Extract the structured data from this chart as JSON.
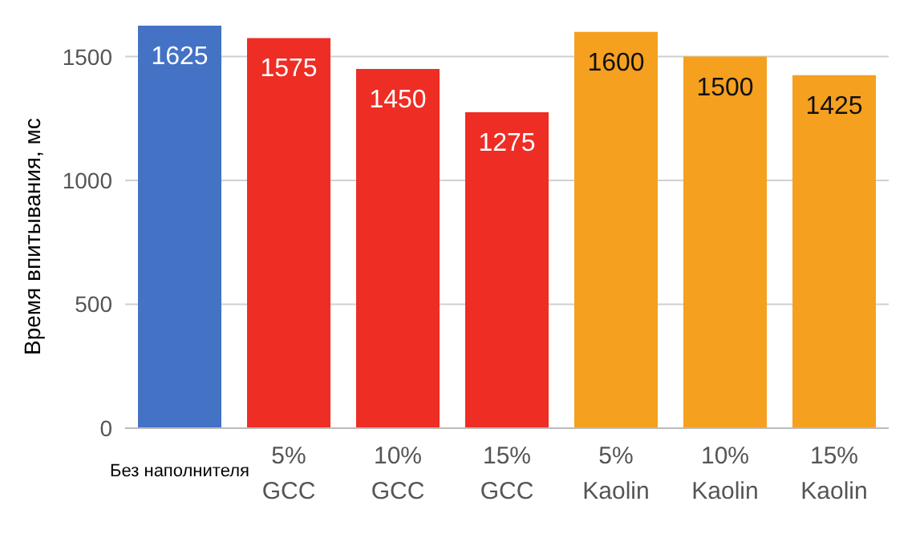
{
  "chart_data": {
    "type": "bar",
    "ylabel": "Время впитывания, мс",
    "categories": [
      "Без наполнителя",
      "5%\nGCC",
      "10%\nGCC",
      "15%\nGCC",
      "5%\nKaolin",
      "10%\nKaolin",
      "15%\nKaolin"
    ],
    "values": [
      1625,
      1575,
      1450,
      1275,
      1600,
      1500,
      1425
    ],
    "colors": [
      "#4472c4",
      "#ee2d24",
      "#ee2d24",
      "#ee2d24",
      "#f5a01f",
      "#f5a01f",
      "#f5a01f"
    ],
    "ylim": [
      0,
      1625
    ],
    "yticks": [
      0,
      500,
      1000,
      1500
    ],
    "grid": "y",
    "data_labels": true
  }
}
